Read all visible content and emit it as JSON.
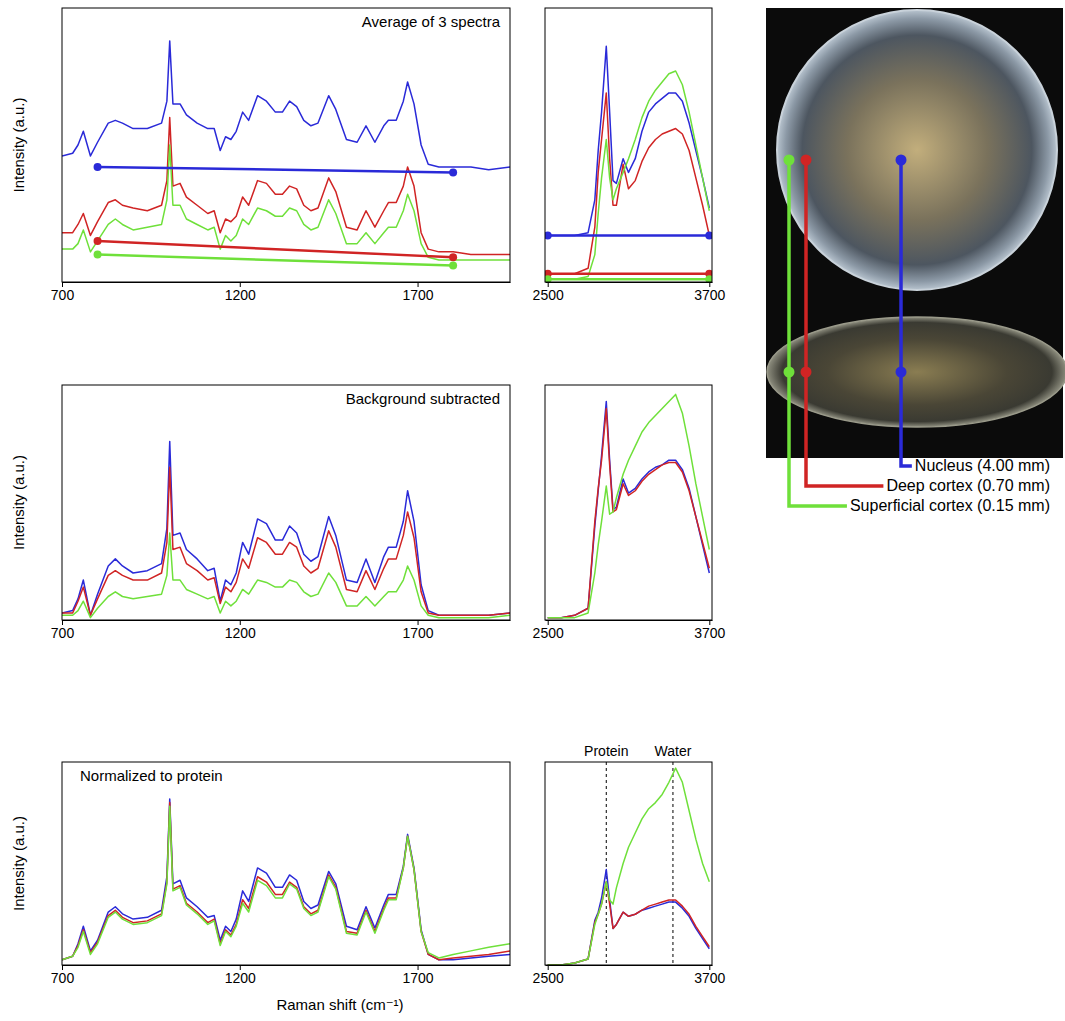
{
  "chart_data": [
    {
      "type": "line",
      "title": "Average of 3 spectra",
      "y_label": "Intensity (a.u.)",
      "x": [
        700,
        730,
        745,
        760,
        780,
        800,
        830,
        850,
        870,
        900,
        940,
        980,
        995,
        1003,
        1012,
        1032,
        1050,
        1080,
        1110,
        1128,
        1145,
        1160,
        1175,
        1190,
        1208,
        1225,
        1250,
        1275,
        1300,
        1320,
        1340,
        1360,
        1380,
        1400,
        1420,
        1450,
        1470,
        1500,
        1530,
        1555,
        1580,
        1605,
        1618,
        1640,
        1660,
        1672,
        1690,
        1710,
        1730,
        1760,
        1800,
        1850,
        1900,
        1960
      ],
      "xlim": [
        700,
        1960
      ],
      "xticks": [
        700,
        1200,
        1700
      ],
      "ylim": [
        0,
        100
      ],
      "tick_labels": "x",
      "series": [
        {
          "color": "#2a2ad8",
          "values": [
            46,
            47,
            50,
            55,
            46,
            51,
            58,
            59,
            58,
            56,
            56,
            58,
            66,
            88,
            65,
            65,
            61,
            58,
            56,
            56,
            48,
            53,
            52,
            55,
            62,
            59,
            68,
            66,
            62,
            62,
            66,
            64,
            59,
            57,
            58,
            68,
            63,
            52,
            51,
            57,
            51,
            57,
            59,
            59,
            66,
            73,
            65,
            50,
            43,
            42,
            42,
            42,
            41,
            42
          ],
          "background": {
            "x": [
              800,
              1800
            ],
            "values": [
              42,
              40
            ]
          }
        },
        {
          "color": "#d02424",
          "values": [
            18,
            18,
            21,
            25,
            17,
            22,
            29,
            30,
            28,
            27,
            26,
            28,
            37,
            60,
            35,
            36,
            31,
            28,
            25,
            26,
            18,
            23,
            22,
            24,
            31,
            28,
            37,
            36,
            32,
            32,
            35,
            34,
            28,
            26,
            27,
            38,
            33,
            20,
            19,
            26,
            20,
            26,
            29,
            29,
            35,
            42,
            35,
            18,
            12,
            11,
            11,
            10,
            10,
            10
          ],
          "background": {
            "x": [
              800,
              1800
            ],
            "values": [
              15,
              9
            ]
          }
        },
        {
          "color": "#6fe03a",
          "values": [
            12,
            12,
            14,
            19,
            11,
            15,
            21,
            23,
            21,
            19,
            20,
            21,
            30,
            50,
            28,
            28,
            23,
            21,
            19,
            20,
            12,
            17,
            15,
            17,
            23,
            21,
            27,
            26,
            24,
            24,
            27,
            26,
            21,
            19,
            20,
            30,
            25,
            14,
            14,
            18,
            14,
            18,
            20,
            20,
            26,
            32,
            26,
            14,
            9,
            8,
            8,
            8,
            8,
            8
          ],
          "background": {
            "x": [
              800,
              1800
            ],
            "values": [
              10,
              6
            ]
          }
        }
      ]
    },
    {
      "type": "line",
      "x": [
        2500,
        2600,
        2700,
        2800,
        2850,
        2875,
        2900,
        2935,
        2960,
        2985,
        3010,
        3060,
        3100,
        3150,
        3200,
        3250,
        3300,
        3350,
        3400,
        3450,
        3500,
        3550,
        3600,
        3650,
        3700
      ],
      "xlim": [
        2480,
        3720
      ],
      "xticks": [
        2500,
        3700
      ],
      "ylim": [
        0,
        100
      ],
      "tick_labels": "x",
      "series": [
        {
          "color": "#2a2ad8",
          "values": [
            17,
            17,
            17,
            18,
            30,
            48,
            62,
            86,
            62,
            37,
            36,
            45,
            40,
            45,
            55,
            62,
            65,
            67,
            69,
            69,
            66,
            58,
            48,
            38,
            27
          ],
          "background": {
            "x": [
              2500,
              3700
            ],
            "values": [
              17,
              17
            ]
          }
        },
        {
          "color": "#d02424",
          "values": [
            3,
            3,
            3,
            5,
            20,
            40,
            52,
            69,
            45,
            28,
            28,
            43,
            34,
            37,
            44,
            49,
            52,
            54,
            55,
            56,
            54,
            48,
            38,
            28,
            17
          ],
          "background": {
            "x": [
              2500,
              3700
            ],
            "values": [
              3,
              3
            ]
          }
        },
        {
          "color": "#6fe03a",
          "values": [
            1,
            1,
            1,
            2,
            10,
            25,
            38,
            52,
            38,
            30,
            34,
            40,
            45,
            52,
            60,
            66,
            70,
            73,
            76,
            77,
            72,
            62,
            50,
            38,
            26
          ],
          "background": {
            "x": [
              2500,
              3700
            ],
            "values": [
              1,
              1
            ]
          }
        }
      ]
    },
    {
      "type": "line",
      "title": "Background subtracted",
      "y_label": "Intensity (a.u.)",
      "x": [
        700,
        730,
        745,
        760,
        780,
        800,
        830,
        850,
        870,
        900,
        940,
        980,
        995,
        1003,
        1012,
        1032,
        1050,
        1080,
        1110,
        1128,
        1145,
        1160,
        1175,
        1190,
        1208,
        1225,
        1250,
        1275,
        1300,
        1320,
        1340,
        1360,
        1380,
        1400,
        1420,
        1450,
        1470,
        1500,
        1530,
        1555,
        1580,
        1605,
        1618,
        1640,
        1660,
        1672,
        1690,
        1710,
        1730,
        1760,
        1800,
        1850,
        1900,
        1960
      ],
      "xlim": [
        700,
        1960
      ],
      "xticks": [
        700,
        1200,
        1700
      ],
      "ylim": [
        0,
        100
      ],
      "tick_labels": "x",
      "series": [
        {
          "color": "#2a2ad8",
          "values": [
            3,
            4,
            9,
            17,
            2,
            11,
            23,
            26,
            23,
            20,
            21,
            24,
            39,
            76,
            36,
            37,
            30,
            26,
            21,
            22,
            8,
            17,
            15,
            20,
            33,
            28,
            43,
            41,
            34,
            34,
            40,
            37,
            28,
            25,
            27,
            44,
            36,
            17,
            16,
            26,
            16,
            27,
            31,
            31,
            42,
            55,
            42,
            15,
            4,
            2,
            2,
            2,
            2,
            3
          ]
        },
        {
          "color": "#d02424",
          "values": [
            3,
            3,
            8,
            14,
            2,
            9,
            19,
            21,
            19,
            17,
            17,
            20,
            33,
            65,
            30,
            31,
            24,
            21,
            17,
            18,
            7,
            14,
            12,
            16,
            26,
            22,
            35,
            33,
            28,
            28,
            33,
            31,
            23,
            20,
            22,
            38,
            31,
            13,
            12,
            21,
            13,
            22,
            26,
            26,
            36,
            46,
            35,
            12,
            3,
            2,
            2,
            2,
            2,
            3
          ]
        },
        {
          "color": "#6fe03a",
          "values": [
            2,
            2,
            4,
            8,
            1,
            5,
            10,
            12,
            10,
            9,
            10,
            11,
            19,
            37,
            17,
            17,
            13,
            11,
            9,
            10,
            3,
            8,
            6,
            8,
            13,
            11,
            17,
            16,
            14,
            14,
            17,
            16,
            12,
            10,
            11,
            20,
            16,
            6,
            6,
            10,
            6,
            10,
            12,
            12,
            17,
            23,
            17,
            6,
            2,
            1,
            1,
            1,
            1,
            2
          ]
        }
      ]
    },
    {
      "type": "line",
      "x": [
        2500,
        2600,
        2700,
        2800,
        2850,
        2875,
        2900,
        2935,
        2960,
        2985,
        3010,
        3060,
        3100,
        3150,
        3200,
        3250,
        3300,
        3350,
        3400,
        3450,
        3500,
        3550,
        3600,
        3650,
        3700
      ],
      "xlim": [
        2480,
        3720
      ],
      "xticks": [
        2500,
        3700
      ],
      "ylim": [
        0,
        100
      ],
      "tick_labels": "x",
      "series": [
        {
          "color": "#2a2ad8",
          "values": [
            1,
            1,
            2,
            5,
            40,
            55,
            70,
            93,
            68,
            47,
            48,
            60,
            54,
            56,
            60,
            63,
            65,
            66,
            68,
            68,
            64,
            56,
            44,
            32,
            20
          ]
        },
        {
          "color": "#d02424",
          "values": [
            1,
            1,
            2,
            5,
            42,
            56,
            68,
            90,
            66,
            46,
            47,
            58,
            53,
            55,
            59,
            62,
            64,
            66,
            67,
            67,
            63,
            55,
            44,
            33,
            22
          ]
        },
        {
          "color": "#6fe03a",
          "values": [
            1,
            1,
            1,
            3,
            20,
            32,
            42,
            57,
            45,
            46,
            52,
            62,
            68,
            74,
            80,
            84,
            87,
            90,
            93,
            96,
            88,
            74,
            58,
            44,
            30
          ]
        }
      ]
    },
    {
      "type": "line",
      "title": "Normalized to protein",
      "y_label": "Intensity (a.u.)",
      "x": [
        700,
        730,
        745,
        760,
        780,
        800,
        830,
        850,
        870,
        900,
        940,
        980,
        995,
        1003,
        1012,
        1032,
        1050,
        1080,
        1110,
        1128,
        1145,
        1160,
        1175,
        1190,
        1208,
        1225,
        1250,
        1275,
        1300,
        1320,
        1340,
        1360,
        1380,
        1400,
        1420,
        1450,
        1470,
        1500,
        1530,
        1555,
        1580,
        1605,
        1618,
        1640,
        1660,
        1672,
        1690,
        1710,
        1730,
        1760,
        1800,
        1850,
        1900,
        1960
      ],
      "xlim": [
        700,
        1960
      ],
      "xticks": [
        700,
        1200,
        1700
      ],
      "ylim": [
        0,
        115
      ],
      "tick_labels": "x",
      "series": [
        {
          "color": "#2a2ad8",
          "values": [
            3,
            5,
            12,
            22,
            8,
            14,
            30,
            33,
            29,
            26,
            27,
            31,
            50,
            94,
            46,
            48,
            38,
            33,
            27,
            28,
            14,
            22,
            19,
            26,
            42,
            36,
            55,
            52,
            44,
            44,
            51,
            48,
            36,
            32,
            34,
            53,
            46,
            22,
            20,
            33,
            21,
            34,
            40,
            40,
            56,
            74,
            55,
            20,
            6,
            3,
            3,
            4,
            5,
            6
          ]
        },
        {
          "color": "#d02424",
          "values": [
            3,
            5,
            11,
            20,
            7,
            13,
            28,
            31,
            27,
            24,
            25,
            29,
            47,
            92,
            43,
            45,
            35,
            30,
            24,
            26,
            12,
            20,
            17,
            23,
            37,
            32,
            50,
            47,
            40,
            40,
            47,
            44,
            33,
            29,
            31,
            51,
            44,
            19,
            18,
            31,
            19,
            32,
            38,
            38,
            55,
            73,
            54,
            19,
            6,
            3,
            4,
            5,
            6,
            8
          ]
        },
        {
          "color": "#6fe03a",
          "values": [
            3,
            5,
            10,
            19,
            6,
            12,
            27,
            30,
            26,
            23,
            24,
            28,
            46,
            90,
            42,
            44,
            34,
            29,
            23,
            25,
            11,
            19,
            16,
            22,
            35,
            30,
            48,
            45,
            38,
            38,
            46,
            43,
            32,
            28,
            30,
            50,
            43,
            18,
            17,
            30,
            18,
            31,
            37,
            37,
            55,
            73,
            54,
            19,
            7,
            4,
            6,
            8,
            10,
            12
          ]
        }
      ]
    },
    {
      "type": "line",
      "x": [
        2500,
        2600,
        2700,
        2800,
        2850,
        2875,
        2900,
        2935,
        2960,
        2985,
        3010,
        3060,
        3100,
        3150,
        3200,
        3250,
        3300,
        3350,
        3400,
        3450,
        3500,
        3550,
        3600,
        3650,
        3700
      ],
      "xlim": [
        2480,
        3720
      ],
      "xticks": [
        2500,
        3700
      ],
      "ylim": [
        0,
        100
      ],
      "tick_labels": "x",
      "annotations": [
        {
          "text": "Protein",
          "x": 2935
        },
        {
          "text": "Water",
          "x": 3430
        }
      ],
      "series": [
        {
          "color": "#2a2ad8",
          "values": [
            0,
            0,
            1,
            3,
            22,
            26,
            33,
            47,
            32,
            18,
            20,
            26,
            24,
            25,
            27,
            28,
            29,
            30,
            31,
            31,
            28,
            24,
            18,
            13,
            8
          ]
        },
        {
          "color": "#d02424",
          "values": [
            0,
            0,
            1,
            3,
            21,
            25,
            30,
            41,
            30,
            18,
            20,
            26,
            24,
            25,
            27,
            29,
            30,
            31,
            32,
            32,
            29,
            25,
            19,
            14,
            9
          ]
        },
        {
          "color": "#6fe03a",
          "values": [
            0,
            0,
            1,
            3,
            20,
            25,
            30,
            41,
            32,
            30,
            38,
            50,
            58,
            65,
            72,
            77,
            80,
            84,
            90,
            97,
            90,
            76,
            62,
            50,
            41
          ]
        }
      ]
    }
  ],
  "x_label": "Raman shift (cm⁻¹)",
  "photo": {
    "labels": [
      {
        "text": "Nucleus (4.00 mm)",
        "color": "#2a2ad8"
      },
      {
        "text": "Deep cortex (0.70 mm)",
        "color": "#d02424"
      },
      {
        "text": "Superficial cortex (0.15 mm)",
        "color": "#6fe03a"
      }
    ]
  }
}
